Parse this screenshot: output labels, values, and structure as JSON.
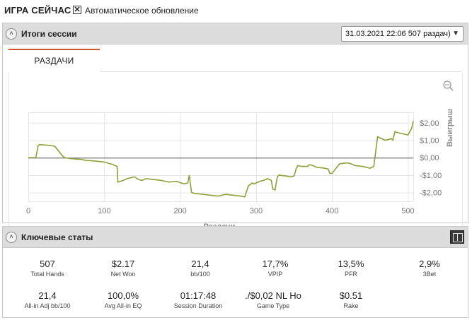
{
  "header": {
    "title": "ИГРА СЕЙЧАС",
    "auto_update_label": "Автоматическое обновление",
    "auto_update_checked": true
  },
  "session_panel": {
    "title": "Итоги сессии",
    "session_select_value": "31.03.2021 22:06 507 раздач)",
    "tab_label": "РАЗДАЧИ",
    "icons": [
      "zoom-icon",
      "gear-icon",
      "info-icon",
      "collapse-icon",
      "chevron-down-icon"
    ]
  },
  "chart_data": {
    "type": "line",
    "xlabel": "Раздачи",
    "ylabel": "Выигрыш",
    "xlim": [
      0,
      507
    ],
    "ylim": [
      -2.5,
      2.6
    ],
    "x_ticks": [
      "0",
      "100",
      "200",
      "300",
      "400",
      "500"
    ],
    "x_tick_values": [
      0,
      100,
      200,
      300,
      400,
      500
    ],
    "y_ticks": [
      "$2,00",
      "$1,00",
      "$0,00",
      "-$1,00",
      "-$2,00"
    ],
    "y_tick_values": [
      2,
      1,
      0,
      -1,
      -2
    ],
    "grid": true,
    "line_color": "#8da03a",
    "x": [
      0,
      10,
      13,
      15,
      30,
      35,
      45,
      48,
      55,
      70,
      75,
      90,
      100,
      112,
      117,
      118,
      125,
      130,
      140,
      145,
      150,
      155,
      165,
      175,
      185,
      195,
      205,
      210,
      212,
      215,
      220,
      230,
      240,
      250,
      260,
      270,
      280,
      285,
      290,
      295,
      297,
      305,
      310,
      315,
      320,
      322,
      325,
      328,
      330,
      340,
      345,
      350,
      353,
      355,
      360,
      368,
      370,
      375,
      380,
      390,
      395,
      397,
      400,
      410,
      420,
      425,
      428,
      430,
      440,
      445,
      450,
      455,
      460,
      465,
      470,
      475,
      478,
      480,
      483,
      485,
      490,
      495,
      500,
      505,
      507
    ],
    "y": [
      0.0,
      0.0,
      0.7,
      0.75,
      0.7,
      0.65,
      0.1,
      0.0,
      -0.05,
      -0.1,
      -0.15,
      -0.2,
      -0.25,
      -0.4,
      -0.5,
      -1.4,
      -1.3,
      -1.2,
      -1.1,
      -1.25,
      -1.3,
      -1.2,
      -1.25,
      -1.3,
      -1.4,
      -1.35,
      -1.5,
      -1.45,
      -1.0,
      -2.0,
      -2.05,
      -2.1,
      -2.15,
      -2.2,
      -2.1,
      -2.15,
      -2.2,
      -2.25,
      -1.6,
      -1.45,
      -1.5,
      -1.35,
      -1.3,
      -1.2,
      -1.3,
      -1.8,
      -1.85,
      -1.1,
      -1.0,
      -1.05,
      -1.1,
      -1.05,
      -0.6,
      -0.45,
      -0.5,
      -0.5,
      -0.4,
      -0.45,
      -0.55,
      -0.6,
      -0.65,
      -0.9,
      -0.9,
      -0.35,
      -0.3,
      -0.35,
      -0.4,
      -0.45,
      -0.5,
      -0.55,
      -0.6,
      -0.5,
      1.2,
      1.1,
      1.0,
      1.05,
      1.1,
      1.0,
      1.5,
      1.45,
      1.4,
      1.35,
      1.3,
      1.7,
      2.1
    ]
  },
  "key_stats": {
    "title": "Ключевые статы",
    "row1": [
      {
        "value": "507",
        "label": "Total Hands"
      },
      {
        "value": "$2.17",
        "label": "Net Won"
      },
      {
        "value": "21,4",
        "label": "bb/100"
      },
      {
        "value": "17,7%",
        "label": "VPIP"
      },
      {
        "value": "13,5%",
        "label": "PFR"
      },
      {
        "value": "2,9%",
        "label": "3Bet"
      }
    ],
    "row2": [
      {
        "value": "21,4",
        "label": "All-in Adj bb/100"
      },
      {
        "value": "100,0%",
        "label": "Avg All-in EQ"
      },
      {
        "value": "01:17:48",
        "label": "Session Duration"
      },
      {
        "value": "./$0,02 NL Ho",
        "label": "Game Type"
      },
      {
        "value": "$0.51",
        "label": "Rake"
      }
    ]
  }
}
